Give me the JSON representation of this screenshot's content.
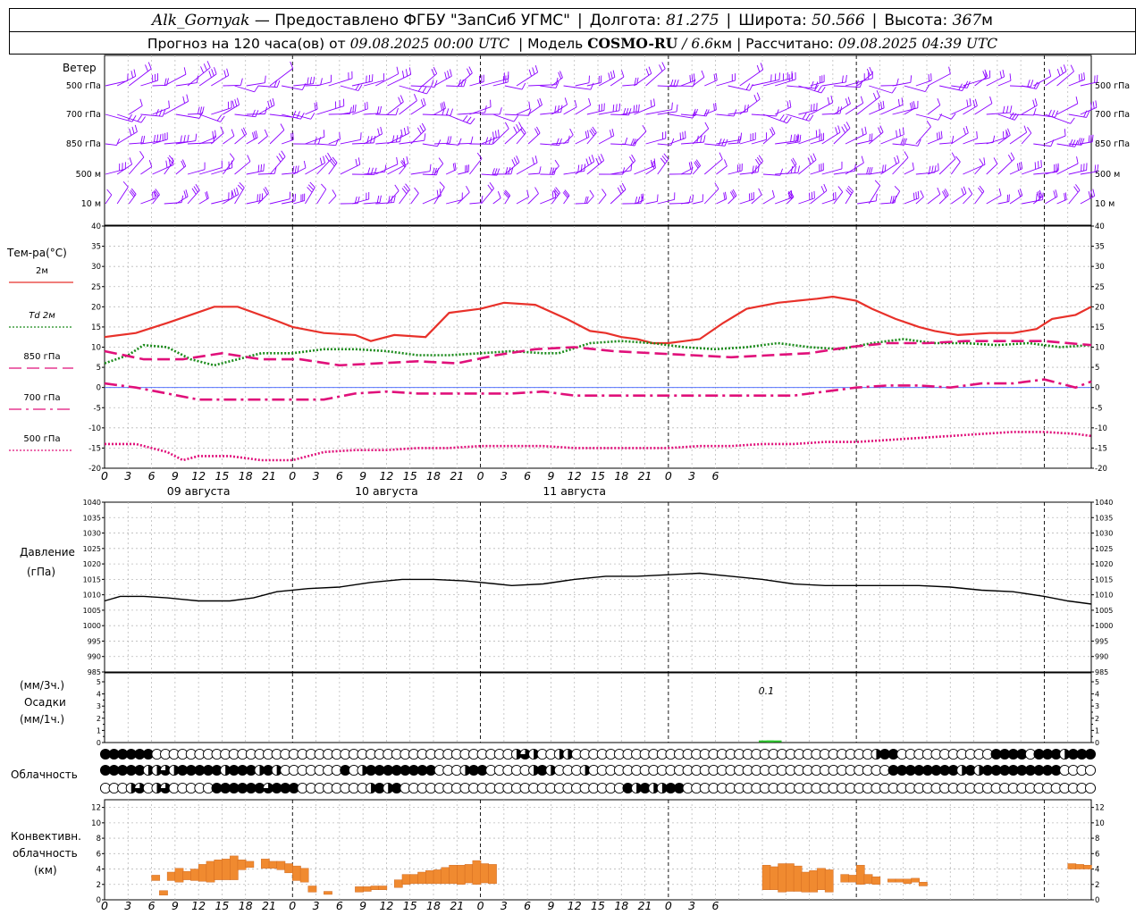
{
  "header": {
    "station": "Alk_Gornyak",
    "provided_by_label": "— Предоставлено ФГБУ \"ЗапСиб УГМС\"",
    "lon_label": "Долгота:",
    "lon": "81.275",
    "lat_label": "Широта:",
    "lat": "50.566",
    "alt_label": "Высота:",
    "alt": "367",
    "alt_unit": "м",
    "forecast_label": "Прогноз на 120 часа(ов) от",
    "forecast_start": "09.08.2025 00:00 UTC",
    "model_label": "| Модель",
    "model": "COSMO-RU",
    "resolution": "/ 6.6",
    "resolution_unit": "км",
    "calc_label": "| Рассчитано:",
    "calc_time": "09.08.2025 04:39 UTC"
  },
  "wind_panel": {
    "title": "Ветер",
    "levels": [
      "500 гПа",
      "700 гПа",
      "850 гПа",
      "500 м",
      "10 м"
    ],
    "color": "#8b00ff"
  },
  "temp_panel": {
    "title": "Тем-ра(°C)",
    "legend": [
      {
        "label": "2м",
        "color": "#e8312a",
        "style": "solid"
      },
      {
        "label": "Td 2м",
        "color": "#1a8a1a",
        "style": "dotted"
      },
      {
        "label": "850 гПа",
        "color": "#e0107a",
        "style": "dashed"
      },
      {
        "label": "700 гПа",
        "color": "#e0107a",
        "style": "dashdot"
      },
      {
        "label": "500 гПа",
        "color": "#e0107a",
        "style": "dotted"
      }
    ],
    "yticks": [
      "40",
      "35",
      "30",
      "25",
      "20",
      "15",
      "10",
      "5",
      "0",
      "-5",
      "-10",
      "-15",
      "-20"
    ]
  },
  "x_axis": {
    "hour_labels": [
      "0",
      "3",
      "6",
      "9",
      "12",
      "15",
      "18",
      "21",
      "0",
      "3",
      "6",
      "9",
      "12",
      "15",
      "18",
      "21",
      "0",
      "3",
      "6",
      "9",
      "12",
      "15",
      "18",
      "21",
      "0",
      "3",
      "6"
    ],
    "dates": [
      "09 августа",
      "10 августа",
      "11 августа"
    ]
  },
  "pressure_panel": {
    "title": "Давление",
    "unit": "(гПа)",
    "yticks": [
      "1040",
      "1035",
      "1030",
      "1025",
      "1020",
      "1015",
      "1010",
      "1005",
      "1000",
      "995",
      "990",
      "985"
    ]
  },
  "precip_panel": {
    "unit_top": "(мм/3ч.)",
    "title": "Осадки",
    "unit_bottom": "(мм/1ч.)",
    "yticks": [
      "5",
      "4",
      "3",
      "2",
      "1",
      "0"
    ],
    "annotation": "0.1",
    "color": "#2ecc2e"
  },
  "cloud_panel": {
    "title": "Облачность",
    "rows": [
      "88888800000000000000000000000000000000000000000046400440000000000000000000000000000000000048800000000000888808884888",
      "88888446488888488848400000008048888888800048800000484000400000000000000000000000000000000000888888884848888888880000",
      "00046046000008888886888000000004848000000000000000000000000008484488000000000000000000000000000000000000000000000000"
    ]
  },
  "conv_panel": {
    "title_1": "Конвективн.",
    "title_2": "облачность",
    "unit": "(км)",
    "yticks": [
      "12",
      "10",
      "8",
      "6",
      "4",
      "2",
      "0"
    ],
    "color": "#f08a30"
  },
  "chart_data": [
    {
      "type": "line",
      "title": "Тем-ра(°C)",
      "x_unit": "hours from 09.08.2025 00:00 UTC",
      "ylim": [
        -20,
        40
      ],
      "series": [
        {
          "name": "2м",
          "x": [
            0,
            4,
            8,
            11,
            14,
            17,
            22,
            24,
            28,
            32,
            34,
            37,
            41,
            44,
            48,
            51,
            55,
            59,
            62,
            64,
            66,
            68,
            70,
            72,
            76,
            79,
            82,
            86,
            91,
            93,
            96,
            98,
            101,
            104,
            106,
            109,
            113,
            116,
            119,
            121,
            124,
            126
          ],
          "y": [
            12.5,
            13.5,
            16,
            18,
            20,
            20,
            16.5,
            15,
            13.5,
            13,
            11.5,
            13,
            12.5,
            18.5,
            19.5,
            21,
            20.5,
            17,
            14,
            13.5,
            12.5,
            12,
            11,
            11,
            12,
            16,
            19.5,
            21,
            22,
            22.5,
            21.5,
            19.5,
            17,
            15,
            14,
            13,
            13.5,
            13.5,
            14.5,
            17,
            18,
            20
          ]
        },
        {
          "name": "Td 2м",
          "x": [
            0,
            3,
            5,
            8,
            11,
            14,
            17,
            20,
            24,
            28,
            32,
            36,
            40,
            44,
            48,
            52,
            56,
            58,
            62,
            66,
            70,
            74,
            78,
            82,
            86,
            90,
            94,
            98,
            102,
            106,
            110,
            114,
            118,
            122,
            126
          ],
          "y": [
            6,
            8,
            10.5,
            10,
            7,
            5.5,
            7,
            8.5,
            8.5,
            9.5,
            9.5,
            9,
            8,
            8,
            8.5,
            9,
            8.5,
            8.5,
            11,
            11.5,
            11,
            10,
            9.5,
            10,
            11,
            10,
            9.5,
            11,
            12,
            11,
            11,
            10.5,
            11,
            10,
            10.5
          ]
        },
        {
          "name": "850 гПа",
          "x": [
            0,
            5,
            10,
            15,
            20,
            25,
            30,
            35,
            40,
            45,
            50,
            55,
            60,
            65,
            70,
            75,
            80,
            85,
            90,
            95,
            100,
            105,
            110,
            115,
            120,
            126
          ],
          "y": [
            9,
            7,
            7,
            8.5,
            7,
            7,
            5.5,
            6,
            6.5,
            6,
            8,
            9.5,
            10,
            9,
            8.5,
            8,
            7.5,
            8,
            8.5,
            10,
            11,
            11,
            11.5,
            11.5,
            11.5,
            10.5
          ]
        },
        {
          "name": "700 гПа",
          "x": [
            0,
            4,
            8,
            12,
            16,
            20,
            24,
            28,
            32,
            36,
            40,
            44,
            48,
            52,
            56,
            60,
            64,
            68,
            72,
            76,
            80,
            84,
            88,
            92,
            96,
            100,
            104,
            108,
            112,
            116,
            120,
            122,
            124,
            126
          ],
          "y": [
            1,
            0,
            -1.5,
            -3,
            -3,
            -3,
            -3,
            -3,
            -1.5,
            -1,
            -1.5,
            -1.5,
            -1.5,
            -1.5,
            -1,
            -2,
            -2,
            -2,
            -2,
            -2,
            -2,
            -2,
            -2,
            -1,
            0,
            0.5,
            0.5,
            0,
            1,
            1,
            2,
            1,
            0,
            1.5
          ]
        },
        {
          "name": "500 гПа",
          "x": [
            0,
            4,
            8,
            10,
            12,
            16,
            20,
            24,
            28,
            32,
            36,
            40,
            44,
            48,
            52,
            56,
            60,
            64,
            68,
            72,
            76,
            80,
            84,
            88,
            92,
            96,
            100,
            104,
            108,
            112,
            116,
            120,
            124,
            126
          ],
          "y": [
            -14,
            -14,
            -16,
            -18,
            -17,
            -17,
            -18,
            -18,
            -16,
            -15.5,
            -15.5,
            -15,
            -15,
            -14.5,
            -14.5,
            -14.5,
            -15,
            -15,
            -15,
            -15,
            -14.5,
            -14.5,
            -14,
            -14,
            -13.5,
            -13.5,
            -13,
            -12.5,
            -12,
            -11.5,
            -11,
            -11,
            -11.5,
            -12
          ]
        }
      ]
    },
    {
      "type": "line",
      "title": "Давление",
      "ylabel": "(гПа)",
      "ylim": [
        985,
        1040
      ],
      "series": [
        {
          "name": "Давление",
          "x": [
            0,
            2,
            5,
            8,
            10,
            12,
            16,
            19,
            22,
            26,
            30,
            34,
            38,
            42,
            46,
            50,
            52,
            56,
            60,
            64,
            68,
            72,
            76,
            80,
            84,
            88,
            92,
            96,
            100,
            104,
            108,
            112,
            116,
            120,
            123,
            126
          ],
          "y": [
            1008,
            1009.5,
            1009.5,
            1009,
            1008.5,
            1008,
            1008,
            1009,
            1011,
            1012,
            1012.5,
            1014,
            1015,
            1015,
            1014.5,
            1013.5,
            1013,
            1013.5,
            1015,
            1016,
            1016,
            1016.5,
            1017,
            1016,
            1015,
            1013.5,
            1013,
            1013,
            1013,
            1013,
            1012.5,
            1011.5,
            1011,
            1009.5,
            1008,
            1007
          ]
        }
      ]
    },
    {
      "type": "bar",
      "title": "Осадки",
      "ylabel": "(мм/3ч.) / (мм/1ч.)",
      "ylim": [
        0,
        5
      ],
      "x": [
        84,
        85
      ],
      "values": [
        0.1,
        0.1
      ]
    },
    {
      "type": "bar",
      "title": "Конвективн. облачность",
      "ylabel": "(км)",
      "ylim": [
        0,
        13
      ],
      "segments": [
        [
          6,
          7,
          2.5,
          3.2
        ],
        [
          7,
          8,
          0.6,
          1.2
        ],
        [
          8,
          9,
          2.5,
          3.6
        ],
        [
          9,
          10,
          2.3,
          4.1
        ],
        [
          10,
          11,
          2.6,
          3.7
        ],
        [
          11,
          12,
          2.5,
          4
        ],
        [
          12,
          13,
          2.4,
          4.6
        ],
        [
          13,
          14,
          2.3,
          5.0
        ],
        [
          14,
          15,
          2.6,
          5.2
        ],
        [
          15,
          16,
          2.6,
          5.3
        ],
        [
          16,
          17,
          2.6,
          5.7
        ],
        [
          17,
          18,
          3.9,
          5.2
        ],
        [
          18,
          19,
          4.2,
          5.0
        ],
        [
          20,
          21,
          4.1,
          5.3
        ],
        [
          21,
          22,
          4.1,
          5.0
        ],
        [
          22,
          23,
          3.9,
          5.0
        ],
        [
          23,
          24,
          3.5,
          4.7
        ],
        [
          24,
          25,
          2.5,
          4.4
        ],
        [
          25,
          26,
          2.3,
          4.1
        ],
        [
          26,
          27,
          1.0,
          1.8
        ],
        [
          28,
          29,
          0.7,
          1.1
        ],
        [
          32,
          33,
          1.0,
          1.7
        ],
        [
          33,
          34,
          1.1,
          1.7
        ],
        [
          34,
          35,
          1.3,
          1.8
        ],
        [
          35,
          36,
          1.3,
          1.8
        ],
        [
          37,
          38,
          1.6,
          2.6
        ],
        [
          38,
          39,
          2.0,
          3.3
        ],
        [
          39,
          40,
          2.1,
          3.3
        ],
        [
          40,
          41,
          2.1,
          3.6
        ],
        [
          41,
          42,
          2.1,
          3.8
        ],
        [
          42,
          43,
          2.1,
          3.9
        ],
        [
          43,
          44,
          2.1,
          4.2
        ],
        [
          44,
          45,
          2.1,
          4.5
        ],
        [
          45,
          46,
          2.0,
          4.5
        ],
        [
          46,
          47,
          2.2,
          4.6
        ],
        [
          47,
          48,
          2.0,
          5.1
        ],
        [
          48,
          49,
          2.2,
          4.7
        ],
        [
          49,
          50,
          2.1,
          4.6
        ],
        [
          84,
          85,
          1.3,
          4.5
        ],
        [
          85,
          86,
          1.3,
          4.3
        ],
        [
          86,
          87,
          1.0,
          4.7
        ],
        [
          87,
          88,
          1.1,
          4.7
        ],
        [
          88,
          89,
          1.1,
          4.4
        ],
        [
          89,
          90,
          1.0,
          3.6
        ],
        [
          90,
          91,
          1.0,
          3.8
        ],
        [
          91,
          92,
          1.3,
          4.1
        ],
        [
          92,
          93,
          1.0,
          3.9
        ],
        [
          94,
          95,
          2.3,
          3.3
        ],
        [
          95,
          96,
          2.3,
          3.2
        ],
        [
          96,
          97,
          2.0,
          4.5
        ],
        [
          97,
          98,
          2.1,
          3.3
        ],
        [
          98,
          99,
          2.0,
          3.0
        ],
        [
          100,
          101,
          2.3,
          2.7
        ],
        [
          101,
          102,
          2.3,
          2.7
        ],
        [
          102,
          103,
          2.1,
          2.7
        ],
        [
          103,
          104,
          2.3,
          2.8
        ],
        [
          104,
          105,
          1.8,
          2.3
        ],
        [
          123,
          124,
          4.0,
          4.7
        ],
        [
          124,
          125,
          4.0,
          4.6
        ],
        [
          125,
          126,
          4.0,
          4.5
        ]
      ]
    }
  ]
}
